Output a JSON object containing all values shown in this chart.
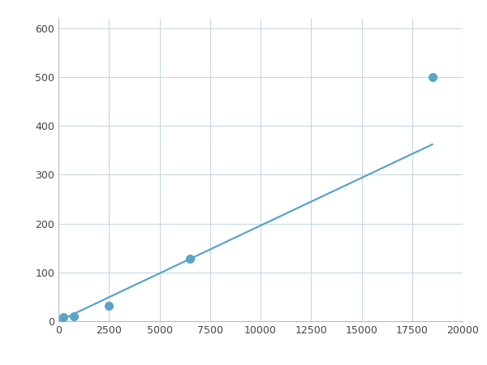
{
  "x": [
    250,
    750,
    2500,
    6500,
    18500
  ],
  "y": [
    8,
    10,
    32,
    128,
    500
  ],
  "line_color": "#5ba3c9",
  "marker_color": "#5ba3c9",
  "marker_size": 7,
  "line_width": 1.6,
  "xlim": [
    0,
    20000
  ],
  "ylim": [
    0,
    620
  ],
  "xticks": [
    0,
    2500,
    5000,
    7500,
    10000,
    12500,
    15000,
    17500,
    20000
  ],
  "yticks": [
    0,
    100,
    200,
    300,
    400,
    500,
    600
  ],
  "grid_color": "#c8d8e8",
  "background_color": "#ffffff",
  "figure_bg": "#ffffff"
}
